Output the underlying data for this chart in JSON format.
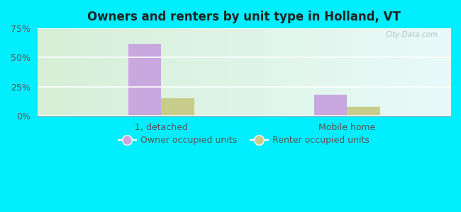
{
  "title": "Owners and renters by unit type in Holland, VT",
  "categories": [
    "1, detached",
    "Mobile home"
  ],
  "owner_values": [
    62,
    18
  ],
  "renter_values": [
    15,
    8
  ],
  "owner_color": "#c9a8e0",
  "renter_color": "#c8cc8a",
  "ylim": [
    0,
    75
  ],
  "yticks": [
    0,
    25,
    50,
    75
  ],
  "yticklabels": [
    "0%",
    "25%",
    "50%",
    "75%"
  ],
  "bar_width": 0.32,
  "group_positions": [
    1.0,
    2.8
  ],
  "background_topleft": "#d6efd6",
  "background_right": "#e8fafa",
  "watermark": "City-Data.com",
  "legend_owner": "Owner occupied units",
  "legend_renter": "Renter occupied units",
  "title_fontsize": 12,
  "tick_fontsize": 9,
  "legend_fontsize": 9,
  "fig_bg": "#00eeff",
  "title_color": "#222222",
  "tick_color": "#555555"
}
